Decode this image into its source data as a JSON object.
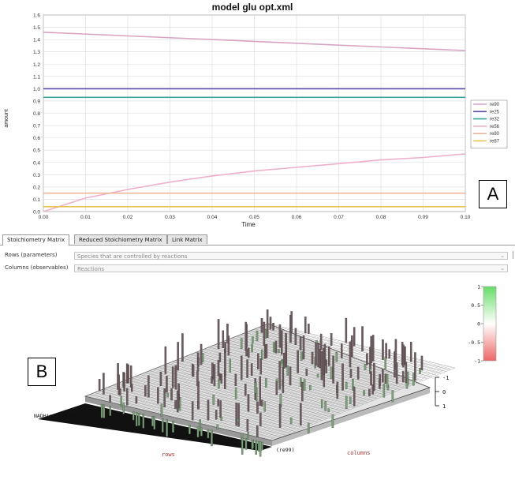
{
  "chart_data": {
    "type": "line",
    "title": "model glu opt.xml",
    "xlabel": "Time",
    "ylabel": "amount",
    "xlim": [
      0.0,
      0.1
    ],
    "ylim": [
      0.0,
      1.6
    ],
    "x_ticks": [
      "0.00",
      "0.01",
      "0.02",
      "0.03",
      "0.04",
      "0.05",
      "0.06",
      "0.07",
      "0.08",
      "0.09",
      "0.10"
    ],
    "y_ticks": [
      "0.0",
      "0.1",
      "0.2",
      "0.3",
      "0.4",
      "0.5",
      "0.6",
      "0.7",
      "0.8",
      "0.9",
      "1.0",
      "1.1",
      "1.2",
      "1.3",
      "1.4",
      "1.5",
      "1.6"
    ],
    "grid": true,
    "legend_position": "right",
    "series": [
      {
        "name": "re90",
        "color": "#d9a3c2",
        "x": [
          0,
          0.02,
          0.04,
          0.06,
          0.08,
          0.1
        ],
        "y": [
          1.46,
          1.43,
          1.4,
          1.37,
          1.34,
          1.31
        ]
      },
      {
        "name": "re25",
        "color": "#5a4fb0",
        "x": [
          0,
          0.1
        ],
        "y": [
          1.0,
          1.0
        ]
      },
      {
        "name": "re32",
        "color": "#3aa69a",
        "x": [
          0,
          0.1
        ],
        "y": [
          0.93,
          0.93
        ]
      },
      {
        "name": "re56",
        "color": "#efb0cc",
        "x": [
          0,
          0.01,
          0.02,
          0.03,
          0.04,
          0.05,
          0.06,
          0.07,
          0.08,
          0.09,
          0.1
        ],
        "y": [
          0.0,
          0.11,
          0.18,
          0.24,
          0.29,
          0.33,
          0.36,
          0.39,
          0.42,
          0.44,
          0.47
        ]
      },
      {
        "name": "re80",
        "color": "#f0b59a",
        "x": [
          0,
          0.1
        ],
        "y": [
          0.15,
          0.15
        ]
      },
      {
        "name": "re87",
        "color": "#e7c24a",
        "x": [
          0,
          0.1
        ],
        "y": [
          0.04,
          0.04
        ]
      }
    ]
  },
  "labels": {
    "a": "A",
    "b": "B"
  },
  "tabs": [
    {
      "label": "Stoichiometry Matrix",
      "active": true
    },
    {
      "label": "Reduced Stoichiometry Matrix",
      "active": false
    },
    {
      "label": "Link Matrix",
      "active": false
    }
  ],
  "fields": {
    "rows_label": "Rows (parameters)",
    "rows_value": "Species that are controlled by reactions",
    "cols_label": "Columns (observables)",
    "cols_value": "Reactions"
  },
  "colorbar": {
    "ticks": [
      "1",
      "0.5",
      "0",
      "-0.5",
      "-1"
    ],
    "colors": {
      "top": "#66dd66",
      "mid": "#ffffff",
      "bottom": "#ee6666"
    }
  },
  "plot3d": {
    "z_ticks": [
      "-1",
      "0",
      "1"
    ],
    "row_label": "NADH(mitochondr",
    "col_label": "(re99)",
    "axis_rows": "rows",
    "axis_columns": "columns"
  }
}
